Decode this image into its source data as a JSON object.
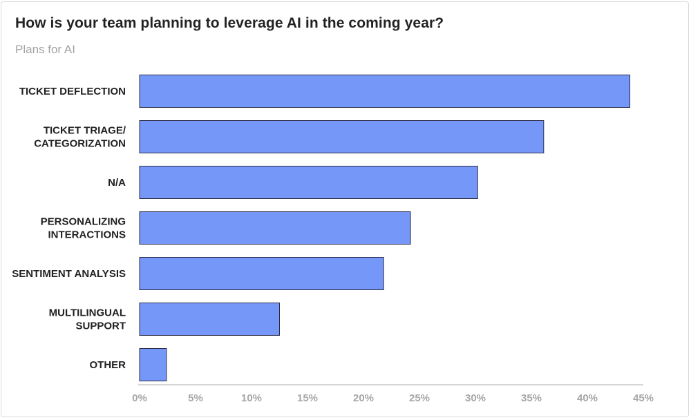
{
  "title": "How is your team planning to leverage AI in the coming year?",
  "subtitle": "Plans for AI",
  "colors": {
    "bar_fill": "#7597f7",
    "bar_stroke": "#2b2b45",
    "axis": "#c8c8c8"
  },
  "chart_data": {
    "type": "bar",
    "orientation": "horizontal",
    "categories": [
      [
        "TICKET DEFLECTION"
      ],
      [
        "TICKET TRIAGE/",
        "CATEGORIZATION"
      ],
      [
        "N/A"
      ],
      [
        "PERSONALIZING",
        "INTERACTIONS"
      ],
      [
        "SENTIMENT ANALYSIS"
      ],
      [
        "MULTILINGUAL",
        "SUPPORT"
      ],
      [
        "OTHER"
      ]
    ],
    "values": [
      43.8,
      36.1,
      30.2,
      24.2,
      21.8,
      12.5,
      2.4
    ],
    "xlim": [
      0,
      45
    ],
    "xticks": [
      0,
      5,
      10,
      15,
      20,
      25,
      30,
      35,
      40,
      45
    ],
    "tick_suffix": "%",
    "grid": false,
    "legend": "none"
  }
}
